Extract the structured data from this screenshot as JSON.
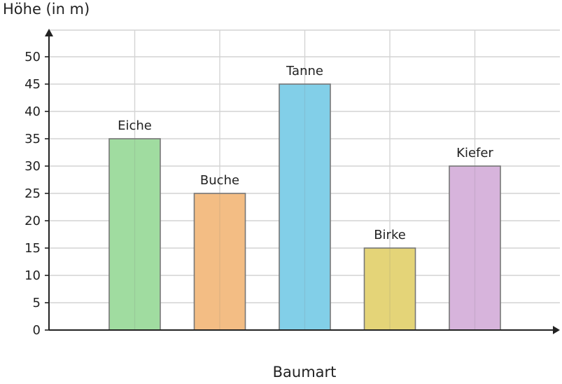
{
  "chart_data": {
    "type": "bar",
    "ylabel": "Höhe (in m)",
    "xlabel": "Baumart",
    "categories": [
      "Eiche",
      "Buche",
      "Tanne",
      "Birke",
      "Kiefer"
    ],
    "values": [
      35,
      25,
      45,
      15,
      30
    ],
    "colors": [
      "#a0dca0",
      "#f3bd84",
      "#82cfe8",
      "#e4d478",
      "#d7b4dc"
    ],
    "ylim": [
      0,
      50
    ],
    "ytick_step": 5,
    "grid": true
  }
}
